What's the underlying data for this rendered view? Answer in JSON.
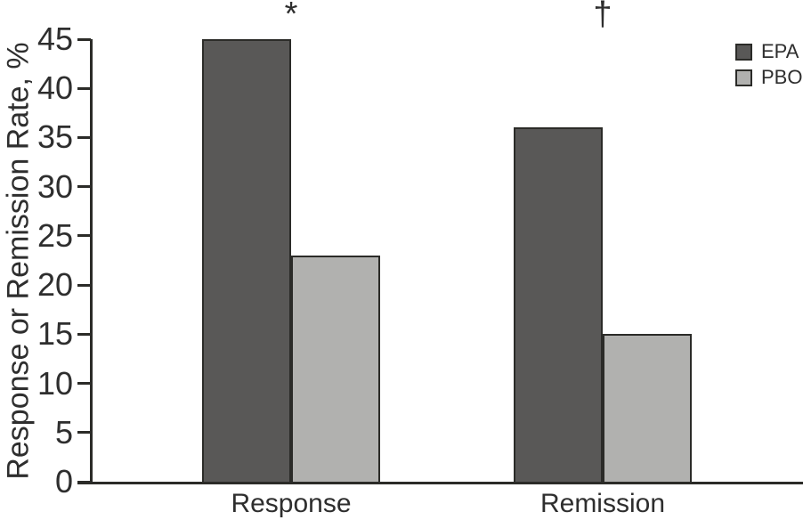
{
  "chart_data": {
    "type": "bar",
    "title": "",
    "ylabel": "Response or Remission Rate, %",
    "xlabel": "",
    "categories": [
      "Response",
      "Remission"
    ],
    "series": [
      {
        "name": "EPA",
        "color": "#595857",
        "border_color": "#2b2b28",
        "values": [
          45,
          36
        ]
      },
      {
        "name": "PBO",
        "color": "#b1b1af",
        "border_color": "#2b2b28",
        "values": [
          23,
          15
        ]
      }
    ],
    "annotations": [
      {
        "text": "*",
        "category_index": 0,
        "meaning": "significance-marker-asterisk"
      },
      {
        "text": "†",
        "category_index": 1,
        "meaning": "significance-marker-dagger"
      }
    ],
    "yticks": [
      0,
      5,
      10,
      15,
      20,
      25,
      30,
      35,
      40,
      45
    ],
    "ylim": [
      0,
      45
    ],
    "grid": false,
    "legend_position": "top-right"
  },
  "colors": {
    "axis": "#2b2b28",
    "text": "#2e2e2e",
    "background": "#ffffff",
    "epa_fill": "#595857",
    "pbo_fill": "#b1b1af"
  }
}
